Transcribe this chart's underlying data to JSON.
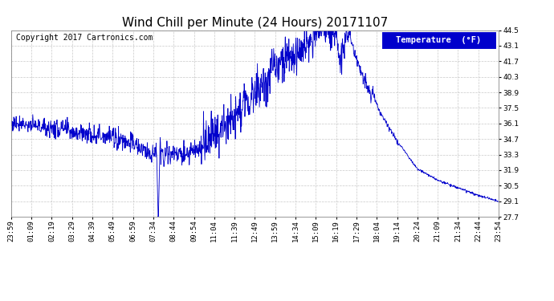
{
  "title": "Wind Chill per Minute (24 Hours) 20171107",
  "copyright": "Copyright 2017 Cartronics.com",
  "legend_label": "Temperature  (°F)",
  "line_color": "#0000cc",
  "background_color": "#ffffff",
  "grid_color": "#bbbbbb",
  "ylim": [
    27.7,
    44.5
  ],
  "yticks": [
    27.7,
    29.1,
    30.5,
    31.9,
    33.3,
    34.7,
    36.1,
    37.5,
    38.9,
    40.3,
    41.7,
    43.1,
    44.5
  ],
  "x_tick_labels": [
    "23:59",
    "01:09",
    "02:19",
    "03:29",
    "04:39",
    "05:49",
    "06:59",
    "07:34",
    "08:44",
    "09:54",
    "11:04",
    "11:39",
    "12:49",
    "13:59",
    "14:34",
    "15:09",
    "16:19",
    "17:29",
    "18:04",
    "19:14",
    "20:24",
    "21:09",
    "21:34",
    "22:44",
    "23:54"
  ],
  "title_fontsize": 11,
  "copyright_fontsize": 7,
  "tick_fontsize": 6.5,
  "legend_fontsize": 7.5
}
